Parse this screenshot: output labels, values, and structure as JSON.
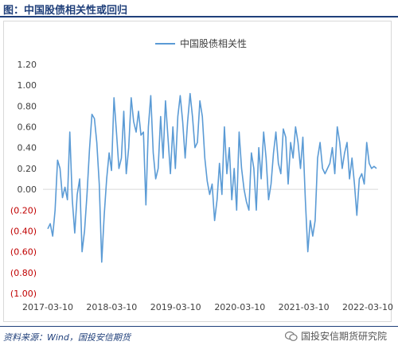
{
  "figure": {
    "title": "图：中国股债相关性或回归",
    "source": "资料来源：Wind，国投安信期货",
    "watermark": "国投安信期货研究院",
    "colors": {
      "title": "#1f3f7a",
      "line": "#5b9bd5",
      "negative_tick": "#c00000",
      "tick": "#404040"
    }
  },
  "chart_data": {
    "type": "line",
    "title": "",
    "xlabel": "",
    "ylabel": "",
    "legend": {
      "position": "top-center"
    },
    "grid": false,
    "ylim": [
      -1.0,
      1.2
    ],
    "yticks": [
      1.2,
      1.0,
      0.8,
      0.6,
      0.4,
      0.2,
      0.0,
      -0.2,
      -0.4,
      -0.6,
      -0.8,
      -1.0
    ],
    "ytick_labels": [
      "1.20",
      "1.00",
      "0.80",
      "0.60",
      "0.40",
      "0.20",
      "0.00",
      "(0.20)",
      "(0.40)",
      "(0.60)",
      "(0.80)",
      "(1.00)"
    ],
    "xticks": [
      "2017-03-10",
      "2018-03-10",
      "2019-03-10",
      "2020-03-10",
      "2021-03-10",
      "2022-03-10"
    ],
    "series": [
      {
        "name": "中国股债相关性",
        "x": [
          "2017-03-10",
          "2017-03-24",
          "2017-04-07",
          "2017-04-21",
          "2017-05-05",
          "2017-05-19",
          "2017-06-02",
          "2017-06-16",
          "2017-06-30",
          "2017-07-14",
          "2017-07-28",
          "2017-08-11",
          "2017-08-25",
          "2017-09-08",
          "2017-09-22",
          "2017-10-06",
          "2017-10-20",
          "2017-11-03",
          "2017-11-17",
          "2017-12-01",
          "2017-12-15",
          "2017-12-29",
          "2018-01-12",
          "2018-01-26",
          "2018-02-09",
          "2018-02-23",
          "2018-03-09",
          "2018-03-23",
          "2018-04-06",
          "2018-04-20",
          "2018-05-04",
          "2018-05-18",
          "2018-06-01",
          "2018-06-15",
          "2018-06-29",
          "2018-07-13",
          "2018-07-27",
          "2018-08-10",
          "2018-08-24",
          "2018-09-07",
          "2018-09-21",
          "2018-10-05",
          "2018-10-19",
          "2018-11-02",
          "2018-11-16",
          "2018-11-30",
          "2018-12-14",
          "2018-12-28",
          "2019-01-11",
          "2019-01-25",
          "2019-02-08",
          "2019-02-22",
          "2019-03-08",
          "2019-03-22",
          "2019-04-05",
          "2019-04-19",
          "2019-05-03",
          "2019-05-17",
          "2019-05-31",
          "2019-06-14",
          "2019-06-28",
          "2019-07-12",
          "2019-07-26",
          "2019-08-09",
          "2019-08-23",
          "2019-09-06",
          "2019-09-20",
          "2019-10-04",
          "2019-10-18",
          "2019-11-01",
          "2019-11-15",
          "2019-11-29",
          "2019-12-13",
          "2019-12-27",
          "2020-01-10",
          "2020-01-24",
          "2020-02-07",
          "2020-02-21",
          "2020-03-06",
          "2020-03-20",
          "2020-04-03",
          "2020-04-17",
          "2020-05-01",
          "2020-05-15",
          "2020-05-29",
          "2020-06-12",
          "2020-06-26",
          "2020-07-10",
          "2020-07-24",
          "2020-08-07",
          "2020-08-21",
          "2020-09-04",
          "2020-09-18",
          "2020-10-02",
          "2020-10-16",
          "2020-10-30",
          "2020-11-13",
          "2020-11-27",
          "2020-12-11",
          "2020-12-25",
          "2021-01-08",
          "2021-01-22",
          "2021-02-05",
          "2021-02-19",
          "2021-03-05",
          "2021-03-19",
          "2021-04-02",
          "2021-04-16",
          "2021-04-30",
          "2021-05-14",
          "2021-05-28",
          "2021-06-11",
          "2021-06-25",
          "2021-07-09",
          "2021-07-23",
          "2021-08-06",
          "2021-08-20",
          "2021-09-03",
          "2021-09-17",
          "2021-10-01",
          "2021-10-15",
          "2021-10-29",
          "2021-11-12",
          "2021-11-26",
          "2021-12-10",
          "2021-12-24",
          "2022-01-07",
          "2022-01-21",
          "2022-02-04",
          "2022-02-18",
          "2022-03-04",
          "2022-03-18",
          "2022-04-01",
          "2022-04-15",
          "2022-04-29"
        ],
        "y": [
          -0.38,
          -0.33,
          -0.45,
          -0.2,
          0.28,
          0.2,
          -0.08,
          0.02,
          -0.1,
          0.55,
          -0.1,
          -0.42,
          -0.05,
          0.1,
          -0.6,
          -0.4,
          -0.05,
          0.38,
          0.72,
          0.68,
          0.45,
          0.05,
          -0.7,
          -0.25,
          0.1,
          0.35,
          0.18,
          0.88,
          0.55,
          0.2,
          0.3,
          0.75,
          0.15,
          0.4,
          0.88,
          0.65,
          0.55,
          0.75,
          0.52,
          0.55,
          -0.15,
          0.6,
          0.9,
          0.35,
          0.1,
          0.2,
          0.7,
          0.3,
          0.85,
          0.5,
          0.15,
          0.6,
          0.2,
          0.7,
          0.9,
          0.65,
          0.3,
          0.65,
          0.92,
          0.7,
          0.4,
          0.45,
          0.85,
          0.7,
          0.3,
          0.08,
          -0.05,
          0.05,
          -0.3,
          -0.1,
          0.25,
          -0.05,
          0.6,
          0.15,
          0.4,
          -0.1,
          0.2,
          -0.2,
          0.55,
          0.2,
          0.0,
          -0.12,
          -0.2,
          0.35,
          0.2,
          -0.2,
          0.4,
          0.1,
          0.55,
          0.3,
          -0.1,
          0.05,
          0.35,
          0.55,
          0.25,
          0.15,
          0.58,
          0.5,
          0.05,
          0.45,
          0.3,
          0.6,
          0.45,
          0.2,
          0.5,
          -0.1,
          -0.6,
          -0.3,
          -0.45,
          -0.3,
          0.3,
          0.45,
          0.2,
          0.15,
          0.2,
          0.25,
          0.4,
          0.15,
          0.6,
          0.45,
          0.2,
          0.35,
          0.45,
          0.1,
          0.3,
          0.05,
          -0.25,
          0.1,
          0.15,
          0.05,
          0.45,
          0.25,
          0.2,
          0.22,
          0.2
        ]
      }
    ]
  }
}
